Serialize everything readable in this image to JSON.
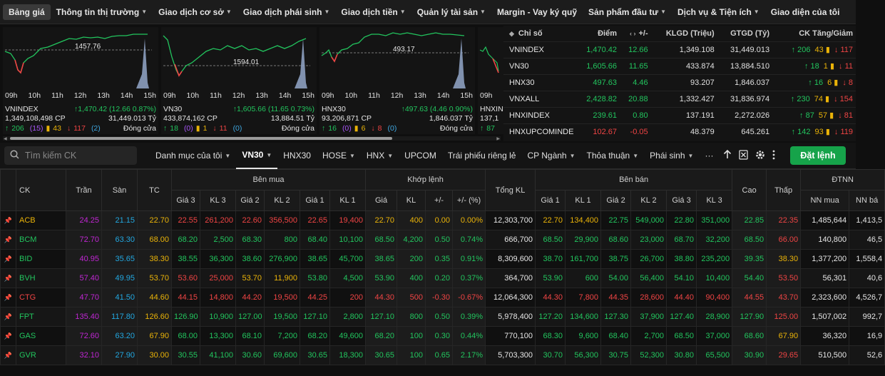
{
  "topnav": [
    {
      "label": "Bảng giá",
      "active": true,
      "caret": false
    },
    {
      "label": "Thông tin thị trường",
      "caret": true
    },
    {
      "label": "Giao dịch cơ sở",
      "caret": true
    },
    {
      "label": "Giao dịch phái sinh",
      "caret": true
    },
    {
      "label": "Giao dịch tiền",
      "caret": true
    },
    {
      "label": "Quản lý tài sản",
      "caret": true
    },
    {
      "label": "Margin - Vay ký quỹ",
      "caret": false
    },
    {
      "label": "Sản phẩm đầu tư",
      "caret": true
    },
    {
      "label": "Dịch vụ & Tiện ích",
      "caret": true
    },
    {
      "label": "Giao diện của tôi",
      "caret": false
    }
  ],
  "cards": [
    {
      "ref_label": "1457.76",
      "times": [
        "09h",
        "10h",
        "11h",
        "12h",
        "13h",
        "14h",
        "15h"
      ],
      "name": "VNINDEX",
      "value": "↑1,470.42 (12.66 0.87%)",
      "volume": "1,349,108,498 CP",
      "turnover": "31,449.013 Tỷ",
      "up": "206",
      "ceil": "(15)",
      "flat": "43",
      "down": "117",
      "floor": "(2)",
      "status": "Đóng cửa"
    },
    {
      "ref_label": "1594.01",
      "times": [
        "09h",
        "10h",
        "11h",
        "12h",
        "13h",
        "14h",
        "15h"
      ],
      "name": "VN30",
      "value": "↑1,605.66 (11.65 0.73%)",
      "volume": "433,874,162 CP",
      "turnover": "13,884.51 Tỷ",
      "up": "18",
      "ceil": "(0)",
      "flat": "1",
      "down": "11",
      "floor": "(0)",
      "status": "Đóng cửa"
    },
    {
      "ref_label": "493.17",
      "times": [
        "09h",
        "10h",
        "11h",
        "12h",
        "13h",
        "14h",
        "15h"
      ],
      "name": "HNX30",
      "value": "↑497.63 (4.46 0.90%)",
      "volume": "93,206,871 CP",
      "turnover": "1,846.037 Tỷ",
      "up": "16",
      "ceil": "(0)",
      "flat": "6",
      "down": "8",
      "floor": "(0)",
      "status": "Đóng cửa"
    },
    {
      "ref_label": "",
      "times": [
        "09h"
      ],
      "name": "HNXIN",
      "value": "",
      "volume": "137,1",
      "turnover": "",
      "up": "87",
      "ceil": "",
      "flat": "",
      "down": "",
      "floor": "",
      "status": ""
    }
  ],
  "index_table": {
    "headers": [
      "Chỉ số",
      "Điểm",
      "+/-",
      "KLGD (Triệu)",
      "GTGD (Tỷ)",
      "CK Tăng/Giảm"
    ],
    "rows": [
      {
        "name": "VNINDEX",
        "point": "1,470.42",
        "change": "12.66",
        "vol": "1,349.108",
        "val": "31,449.013",
        "up": "206",
        "flat": "43",
        "down": "117",
        "color": "g"
      },
      {
        "name": "VN30",
        "point": "1,605.66",
        "change": "11.65",
        "vol": "433.874",
        "val": "13,884.510",
        "up": "18",
        "flat": "1",
        "down": "11",
        "color": "g"
      },
      {
        "name": "HNX30",
        "point": "497.63",
        "change": "4.46",
        "vol": "93.207",
        "val": "1,846.037",
        "up": "16",
        "flat": "6",
        "down": "8",
        "color": "g"
      },
      {
        "name": "VNXALL",
        "point": "2,428.82",
        "change": "20.88",
        "vol": "1,332.427",
        "val": "31,836.974",
        "up": "230",
        "flat": "74",
        "down": "154",
        "color": "g"
      },
      {
        "name": "HNXINDEX",
        "point": "239.61",
        "change": "0.80",
        "vol": "137.191",
        "val": "2,272.026",
        "up": "87",
        "flat": "57",
        "down": "81",
        "color": "g"
      },
      {
        "name": "HNXUPCOMINDE",
        "point": "102.67",
        "change": "-0.05",
        "vol": "48.379",
        "val": "645.261",
        "up": "142",
        "flat": "93",
        "down": "119",
        "color": "r"
      }
    ]
  },
  "toolbar": {
    "search_placeholder": "Tìm kiếm CK",
    "tabs": [
      {
        "label": "Danh mục của tôi",
        "caret": true
      },
      {
        "label": "VN30",
        "caret": true,
        "active": true
      },
      {
        "label": "HNX30",
        "caret": false
      },
      {
        "label": "HOSE",
        "caret": true
      },
      {
        "label": "HNX",
        "caret": true
      },
      {
        "label": "UPCOM",
        "caret": false
      },
      {
        "label": "Trái phiếu riêng lẻ",
        "caret": false
      },
      {
        "label": "CP Ngành",
        "caret": true
      },
      {
        "label": "Thỏa thuận",
        "caret": true
      },
      {
        "label": "Phái sinh",
        "caret": true
      }
    ],
    "more": "···",
    "order_label": "Đặt lệnh"
  },
  "grid": {
    "group_headers": [
      "CK",
      "Trần",
      "Sàn",
      "TC",
      "Bên mua",
      "Khớp lệnh",
      "Tổng KL",
      "Bên bán",
      "Cao",
      "Thấp",
      "ĐTNN"
    ],
    "sub_headers": [
      "Giá 3",
      "KL 3",
      "Giá 2",
      "KL 2",
      "Giá 1",
      "KL 1",
      "Giá",
      "KL",
      "+/-",
      "+/- (%)",
      "Giá 1",
      "KL 1",
      "Giá 2",
      "KL 2",
      "Giá 3",
      "KL 3",
      "NN mua",
      "NN bá"
    ],
    "rows": [
      {
        "ck": "ACB",
        "c": "y",
        "tran": "24.25",
        "san": "21.15",
        "tc": "22.70",
        "b3": "22.55",
        "bk3": "261,200",
        "b3c": "r",
        "b2": "22.60",
        "bk2": "356,500",
        "b2c": "r",
        "b1": "22.65",
        "bk1": "19,400",
        "b1c": "r",
        "m": "22.70",
        "mk": "400",
        "mch": "0.00",
        "mp": "0.00%",
        "mc": "y",
        "tot": "12,303,700",
        "s1": "22.70",
        "sk1": "134,400",
        "s1c": "y",
        "s2": "22.75",
        "sk2": "549,000",
        "s2c": "g",
        "s3": "22.80",
        "sk3": "351,000",
        "s3c": "g",
        "hi": "22.85",
        "hic": "g",
        "lo": "22.35",
        "loc": "r",
        "nnm": "1,485,644",
        "nnb": "1,413,5"
      },
      {
        "ck": "BCM",
        "c": "g",
        "tran": "72.70",
        "san": "63.30",
        "tc": "68.00",
        "b3": "68.20",
        "bk3": "2,500",
        "b3c": "g",
        "b2": "68.30",
        "bk2": "800",
        "b2c": "g",
        "b1": "68.40",
        "bk1": "10,100",
        "b1c": "g",
        "m": "68.50",
        "mk": "4,200",
        "mch": "0.50",
        "mp": "0.74%",
        "mc": "g",
        "tot": "666,700",
        "s1": "68.50",
        "sk1": "29,900",
        "s1c": "g",
        "s2": "68.60",
        "sk2": "23,000",
        "s2c": "g",
        "s3": "68.70",
        "sk3": "32,200",
        "s3c": "g",
        "hi": "68.50",
        "hic": "g",
        "lo": "66.00",
        "loc": "r",
        "nnm": "140,800",
        "nnb": "46,5"
      },
      {
        "ck": "BID",
        "c": "g",
        "tran": "40.95",
        "san": "35.65",
        "tc": "38.30",
        "b3": "38.55",
        "bk3": "36,300",
        "b3c": "g",
        "b2": "38.60",
        "bk2": "276,900",
        "b2c": "g",
        "b1": "38.65",
        "bk1": "45,700",
        "b1c": "g",
        "m": "38.65",
        "mk": "200",
        "mch": "0.35",
        "mp": "0.91%",
        "mc": "g",
        "tot": "8,309,600",
        "s1": "38.70",
        "sk1": "161,700",
        "s1c": "g",
        "s2": "38.75",
        "sk2": "26,700",
        "s2c": "g",
        "s3": "38.80",
        "sk3": "235,200",
        "s3c": "g",
        "hi": "39.35",
        "hic": "g",
        "lo": "38.30",
        "loc": "y",
        "nnm": "1,377,200",
        "nnb": "1,558,4"
      },
      {
        "ck": "BVH",
        "c": "g",
        "tran": "57.40",
        "san": "49.95",
        "tc": "53.70",
        "b3": "53.60",
        "bk3": "25,000",
        "b3c": "r",
        "b2": "53.70",
        "bk2": "11,900",
        "b2c": "y",
        "b1": "53.80",
        "bk1": "4,500",
        "b1c": "g",
        "m": "53.90",
        "mk": "400",
        "mch": "0.20",
        "mp": "0.37%",
        "mc": "g",
        "tot": "364,700",
        "s1": "53.90",
        "sk1": "600",
        "s1c": "g",
        "s2": "54.00",
        "sk2": "56,400",
        "s2c": "g",
        "s3": "54.10",
        "sk3": "10,400",
        "s3c": "g",
        "hi": "54.40",
        "hic": "g",
        "lo": "53.50",
        "loc": "r",
        "nnm": "56,301",
        "nnb": "40,6"
      },
      {
        "ck": "CTG",
        "c": "r",
        "tran": "47.70",
        "san": "41.50",
        "tc": "44.60",
        "b3": "44.15",
        "bk3": "14,800",
        "b3c": "r",
        "b2": "44.20",
        "bk2": "19,500",
        "b2c": "r",
        "b1": "44.25",
        "bk1": "200",
        "b1c": "r",
        "m": "44.30",
        "mk": "500",
        "mch": "-0.30",
        "mp": "-0.67%",
        "mc": "r",
        "tot": "12,064,300",
        "s1": "44.30",
        "sk1": "7,800",
        "s1c": "r",
        "s2": "44.35",
        "sk2": "28,600",
        "s2c": "r",
        "s3": "44.40",
        "sk3": "90,400",
        "s3c": "r",
        "hi": "44.55",
        "hic": "r",
        "lo": "43.70",
        "loc": "r",
        "nnm": "2,323,600",
        "nnb": "4,526,7"
      },
      {
        "ck": "FPT",
        "c": "g",
        "tran": "135.40",
        "san": "117.80",
        "tc": "126.60",
        "b3": "126.90",
        "bk3": "10,900",
        "b3c": "g",
        "b2": "127.00",
        "bk2": "19,500",
        "b2c": "g",
        "b1": "127.10",
        "bk1": "2,800",
        "b1c": "g",
        "m": "127.10",
        "mk": "800",
        "mch": "0.50",
        "mp": "0.39%",
        "mc": "g",
        "tot": "5,978,400",
        "s1": "127.20",
        "sk1": "134,600",
        "s1c": "g",
        "s2": "127.30",
        "sk2": "37,900",
        "s2c": "g",
        "s3": "127.40",
        "sk3": "28,900",
        "s3c": "g",
        "hi": "127.90",
        "hic": "g",
        "lo": "125.00",
        "loc": "r",
        "nnm": "1,507,002",
        "nnb": "992,7"
      },
      {
        "ck": "GAS",
        "c": "g",
        "tran": "72.60",
        "san": "63.20",
        "tc": "67.90",
        "b3": "68.00",
        "bk3": "13,300",
        "b3c": "g",
        "b2": "68.10",
        "bk2": "7,200",
        "b2c": "g",
        "b1": "68.20",
        "bk1": "49,600",
        "b1c": "g",
        "m": "68.20",
        "mk": "100",
        "mch": "0.30",
        "mp": "0.44%",
        "mc": "g",
        "tot": "770,100",
        "s1": "68.30",
        "sk1": "9,600",
        "s1c": "g",
        "s2": "68.40",
        "sk2": "2,700",
        "s2c": "g",
        "s3": "68.50",
        "sk3": "37,000",
        "s3c": "g",
        "hi": "68.60",
        "hic": "g",
        "lo": "67.90",
        "loc": "y",
        "nnm": "36,320",
        "nnb": "16,9"
      },
      {
        "ck": "GVR",
        "c": "g",
        "tran": "32.10",
        "san": "27.90",
        "tc": "30.00",
        "b3": "30.55",
        "bk3": "41,100",
        "b3c": "g",
        "b2": "30.60",
        "bk2": "69,600",
        "b2c": "g",
        "b1": "30.65",
        "bk1": "18,300",
        "b1c": "g",
        "m": "30.65",
        "mk": "100",
        "mch": "0.65",
        "mp": "2.17%",
        "mc": "g",
        "tot": "5,703,300",
        "s1": "30.70",
        "sk1": "56,300",
        "s1c": "g",
        "s2": "30.75",
        "sk2": "52,300",
        "s2c": "g",
        "s3": "30.80",
        "sk3": "65,500",
        "s3c": "g",
        "hi": "30.90",
        "hic": "g",
        "lo": "29.65",
        "loc": "r",
        "nnm": "510,500",
        "nnb": "52,6"
      }
    ]
  }
}
